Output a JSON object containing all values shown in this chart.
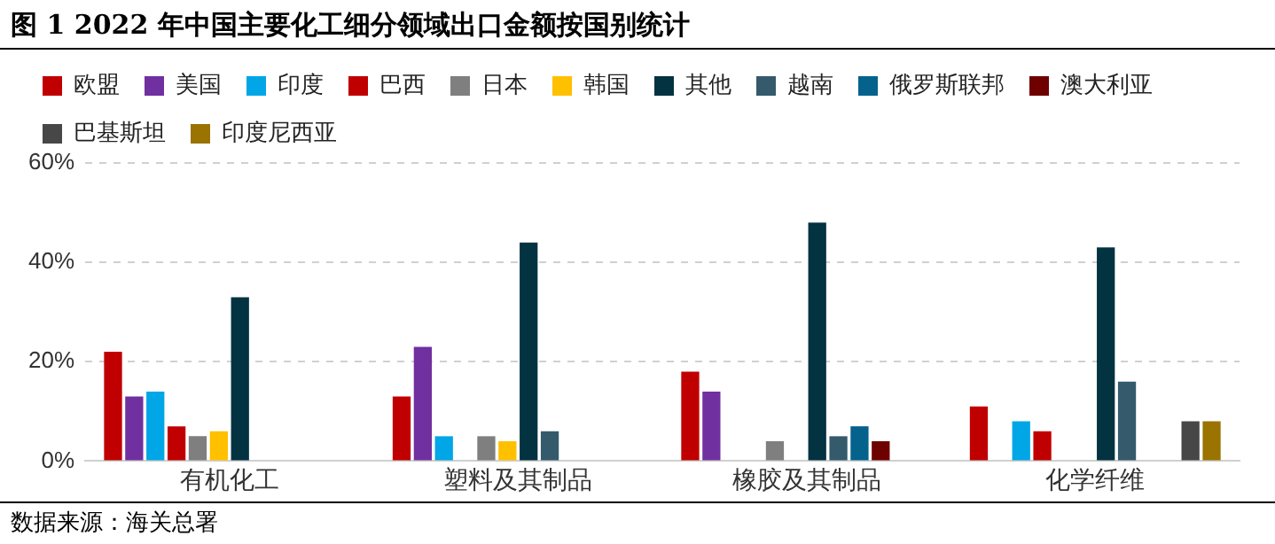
{
  "chart_data": {
    "type": "bar",
    "title": "图 1 2022 年中国主要化工细分领域出口金额按国别统计",
    "categories": [
      "有机化工",
      "塑料及其制品",
      "橡胶及其制品",
      "化学纤维"
    ],
    "series": [
      {
        "name": "欧盟",
        "color": "#c00000",
        "values": [
          22,
          13,
          18,
          11
        ]
      },
      {
        "name": "美国",
        "color": "#7030a0",
        "values": [
          13,
          23,
          14,
          null
        ]
      },
      {
        "name": "印度",
        "color": "#00a6e6",
        "values": [
          14,
          5,
          null,
          8
        ]
      },
      {
        "name": "巴西",
        "color": "#c00000",
        "values": [
          7,
          null,
          null,
          6
        ]
      },
      {
        "name": "日本",
        "color": "#7f7f7f",
        "values": [
          5,
          5,
          4,
          null
        ]
      },
      {
        "name": "韩国",
        "color": "#ffc000",
        "values": [
          6,
          4,
          null,
          null
        ]
      },
      {
        "name": "其他",
        "color": "#033241",
        "values": [
          33,
          44,
          48,
          43
        ]
      },
      {
        "name": "越南",
        "color": "#355a6c",
        "values": [
          null,
          6,
          5,
          16
        ]
      },
      {
        "name": "俄罗斯联邦",
        "color": "#04628d",
        "values": [
          null,
          null,
          7,
          null
        ]
      },
      {
        "name": "澳大利亚",
        "color": "#6e0000",
        "values": [
          null,
          null,
          4,
          null
        ]
      },
      {
        "name": "巴基斯坦",
        "color": "#474747",
        "values": [
          null,
          null,
          null,
          8
        ]
      },
      {
        "name": "印度尼西亚",
        "color": "#9a7300",
        "values": [
          null,
          null,
          null,
          8
        ]
      }
    ],
    "ylim": [
      0,
      60
    ],
    "yticks": [
      {
        "value": 0,
        "label": "0%"
      },
      {
        "value": 20,
        "label": "20%"
      },
      {
        "value": 40,
        "label": "40%"
      },
      {
        "value": 60,
        "label": "60%"
      }
    ],
    "grid": "y",
    "legend": "top left",
    "annotations": [
      "数据来源：海关总署"
    ]
  }
}
